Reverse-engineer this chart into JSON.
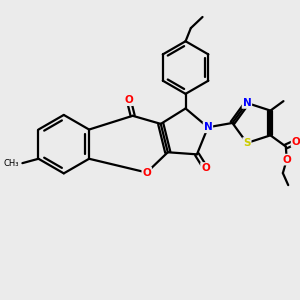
{
  "background_color": "#ebebeb",
  "atom_colors": {
    "O": "#ff0000",
    "N": "#0000ff",
    "S": "#cccc00",
    "C": "#000000"
  },
  "line_color": "#000000",
  "line_width": 1.6,
  "figsize": [
    3.0,
    3.0
  ],
  "dpi": 100
}
